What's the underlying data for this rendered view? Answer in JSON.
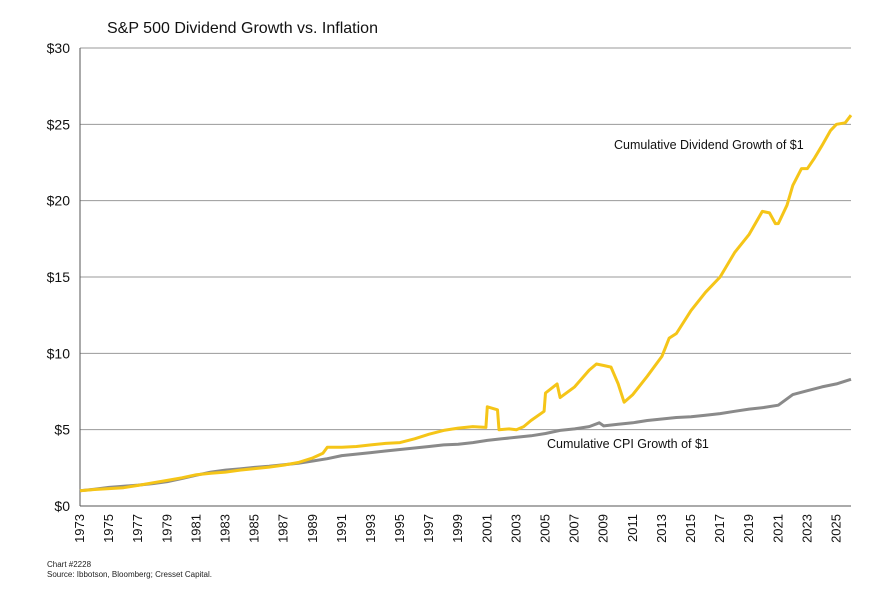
{
  "chart_data": {
    "type": "line",
    "title": "S&P 500 Dividend Growth vs. Inflation",
    "xlabel": "",
    "ylabel": "",
    "xlim": [
      1973,
      2026
    ],
    "ylim": [
      0,
      30
    ],
    "y_ticks": [
      0,
      5,
      10,
      15,
      20,
      25,
      30
    ],
    "y_tick_labels": [
      "$0",
      "$5",
      "$10",
      "$15",
      "$20",
      "$25",
      "$30"
    ],
    "x_tick_labels": [
      "1973",
      "1975",
      "1977",
      "1979",
      "1981",
      "1983",
      "1985",
      "1987",
      "1989",
      "1991",
      "1993",
      "1995",
      "1997",
      "1999",
      "2001",
      "2003",
      "2005",
      "2007",
      "2009",
      "2011",
      "2013",
      "2015",
      "2017",
      "2019",
      "2021",
      "2023",
      "2025"
    ],
    "grid": "horizontal",
    "legend": "inline labels",
    "series": [
      {
        "name": "Cumulative Dividend Growth of $1",
        "color": "#F5C518",
        "points": [
          [
            1973,
            1.0
          ],
          [
            1974,
            1.08
          ],
          [
            1975,
            1.14
          ],
          [
            1976,
            1.2
          ],
          [
            1977,
            1.35
          ],
          [
            1978,
            1.52
          ],
          [
            1979,
            1.68
          ],
          [
            1980,
            1.85
          ],
          [
            1981,
            2.05
          ],
          [
            1982,
            2.15
          ],
          [
            1983,
            2.22
          ],
          [
            1984,
            2.35
          ],
          [
            1985,
            2.45
          ],
          [
            1986,
            2.55
          ],
          [
            1987,
            2.68
          ],
          [
            1988,
            2.85
          ],
          [
            1989,
            3.15
          ],
          [
            1989.7,
            3.45
          ],
          [
            1990,
            3.85
          ],
          [
            1991,
            3.85
          ],
          [
            1992,
            3.9
          ],
          [
            1993,
            4.0
          ],
          [
            1994,
            4.1
          ],
          [
            1995,
            4.15
          ],
          [
            1996,
            4.4
          ],
          [
            1997,
            4.7
          ],
          [
            1998,
            4.95
          ],
          [
            1999,
            5.1
          ],
          [
            2000,
            5.2
          ],
          [
            2000.9,
            5.15
          ],
          [
            2001,
            6.5
          ],
          [
            2001.7,
            6.3
          ],
          [
            2001.8,
            5.0
          ],
          [
            2002.5,
            5.05
          ],
          [
            2003,
            5.0
          ],
          [
            2003.5,
            5.2
          ],
          [
            2004,
            5.6
          ],
          [
            2004.9,
            6.2
          ],
          [
            2005,
            7.4
          ],
          [
            2005.8,
            8.0
          ],
          [
            2006,
            7.1
          ],
          [
            2007,
            7.8
          ],
          [
            2008,
            8.9
          ],
          [
            2008.5,
            9.3
          ],
          [
            2009,
            9.2
          ],
          [
            2009.5,
            9.1
          ],
          [
            2010,
            8.0
          ],
          [
            2010.4,
            6.8
          ],
          [
            2011,
            7.3
          ],
          [
            2012,
            8.5
          ],
          [
            2013,
            9.8
          ],
          [
            2013.5,
            11.0
          ],
          [
            2014,
            11.3
          ],
          [
            2015,
            12.8
          ],
          [
            2016,
            14.0
          ],
          [
            2017,
            15.0
          ],
          [
            2018,
            16.6
          ],
          [
            2019,
            17.8
          ],
          [
            2019.9,
            19.3
          ],
          [
            2020.4,
            19.2
          ],
          [
            2020.8,
            18.5
          ],
          [
            2021,
            18.5
          ],
          [
            2021.6,
            19.7
          ],
          [
            2022,
            21.0
          ],
          [
            2022.6,
            22.1
          ],
          [
            2023,
            22.1
          ],
          [
            2023.5,
            22.8
          ],
          [
            2024,
            23.6
          ],
          [
            2024.6,
            24.6
          ],
          [
            2025,
            25.0
          ],
          [
            2025.6,
            25.1
          ],
          [
            2026,
            25.6
          ]
        ]
      },
      {
        "name": "Cumulative CPI Growth of $1",
        "color": "#8A8A8A",
        "points": [
          [
            1973,
            1.0
          ],
          [
            1974,
            1.1
          ],
          [
            1975,
            1.22
          ],
          [
            1976,
            1.3
          ],
          [
            1977,
            1.37
          ],
          [
            1978,
            1.47
          ],
          [
            1979,
            1.6
          ],
          [
            1980,
            1.8
          ],
          [
            1981,
            2.02
          ],
          [
            1982,
            2.22
          ],
          [
            1983,
            2.35
          ],
          [
            1984,
            2.43
          ],
          [
            1985,
            2.53
          ],
          [
            1986,
            2.6
          ],
          [
            1987,
            2.7
          ],
          [
            1988,
            2.8
          ],
          [
            1989,
            2.95
          ],
          [
            1990,
            3.1
          ],
          [
            1991,
            3.3
          ],
          [
            1992,
            3.4
          ],
          [
            1993,
            3.5
          ],
          [
            1994,
            3.6
          ],
          [
            1995,
            3.7
          ],
          [
            1996,
            3.8
          ],
          [
            1997,
            3.9
          ],
          [
            1998,
            4.0
          ],
          [
            1999,
            4.05
          ],
          [
            2000,
            4.15
          ],
          [
            2001,
            4.3
          ],
          [
            2002,
            4.4
          ],
          [
            2003,
            4.5
          ],
          [
            2004,
            4.6
          ],
          [
            2005,
            4.75
          ],
          [
            2006,
            4.95
          ],
          [
            2007,
            5.05
          ],
          [
            2008,
            5.2
          ],
          [
            2008.7,
            5.45
          ],
          [
            2009,
            5.25
          ],
          [
            2010,
            5.35
          ],
          [
            2011,
            5.45
          ],
          [
            2012,
            5.6
          ],
          [
            2013,
            5.7
          ],
          [
            2014,
            5.8
          ],
          [
            2015,
            5.85
          ],
          [
            2016,
            5.95
          ],
          [
            2017,
            6.05
          ],
          [
            2018,
            6.2
          ],
          [
            2019,
            6.35
          ],
          [
            2020,
            6.45
          ],
          [
            2021,
            6.6
          ],
          [
            2022,
            7.3
          ],
          [
            2023,
            7.55
          ],
          [
            2024,
            7.8
          ],
          [
            2025,
            8.0
          ],
          [
            2026,
            8.3
          ]
        ]
      }
    ]
  },
  "footer": {
    "chart_number": "Chart #2228",
    "source": "Source: Ibbotson, Bloomberg; Cresset Capital."
  }
}
